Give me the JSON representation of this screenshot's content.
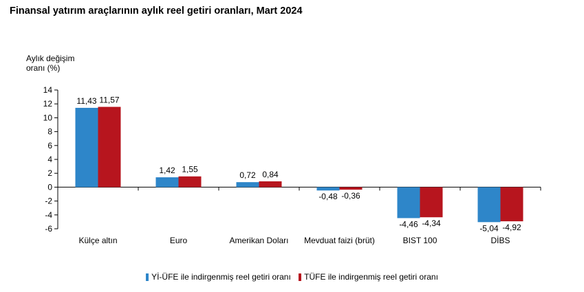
{
  "chart_data": {
    "type": "bar",
    "title": "Finansal yatırım araçlarının aylık reel getiri oranları, Mart 2024",
    "ylabel_line1": "Aylık değişim",
    "ylabel_line2": "oranı (%)",
    "xlabel": "",
    "ylim": [
      -6,
      14
    ],
    "yticks": [
      -6,
      -4,
      -2,
      0,
      2,
      4,
      6,
      8,
      10,
      12,
      14
    ],
    "categories": [
      "Külçe altın",
      "Euro",
      "Amerikan Doları",
      "Mevduat faizi (brüt)",
      "BIST 100",
      "DİBS"
    ],
    "series": [
      {
        "name": "Yİ-ÜFE ile indirgenmiş reel getiri oranı",
        "color": "#2E86C9",
        "values": [
          11.43,
          1.42,
          0.72,
          -0.48,
          -4.46,
          -5.04
        ],
        "labels": [
          "11,43",
          "1,42",
          "0,72",
          "-0,48",
          "-4,46",
          "-5,04"
        ]
      },
      {
        "name": "TÜFE ile indirgenmiş reel getiri oranı",
        "color": "#B7151E",
        "values": [
          11.57,
          1.55,
          0.84,
          -0.36,
          -4.34,
          -4.92
        ],
        "labels": [
          "11,57",
          "1,55",
          "0,84",
          "-0,36",
          "-4,34",
          "-4,92"
        ]
      }
    ],
    "legend_position": "bottom",
    "grid": false
  }
}
